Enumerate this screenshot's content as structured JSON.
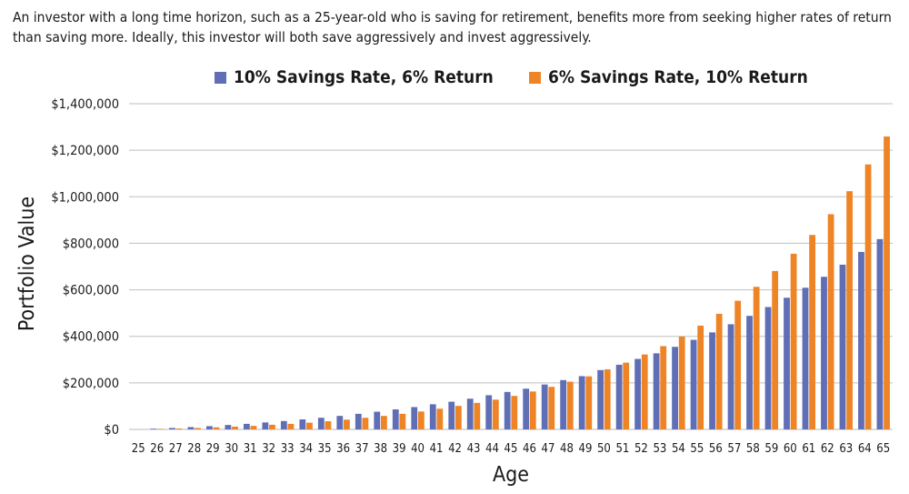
{
  "caption": "An investor with a long time horizon, such as a 25-year-old who is saving for retirement, benefits more from seeking higher rates of return than saving more. Ideally, this investor will both save aggressively and invest aggressively.",
  "colors": {
    "series1": "#5f6eb5",
    "series2": "#ee8426",
    "grid": "#bfbfbf",
    "axis": "#d0d0d0"
  },
  "chart_data": {
    "type": "bar",
    "xlabel": "Age",
    "ylabel": "Portfolio Value",
    "ylim": [
      0,
      1400000
    ],
    "yticks": [
      0,
      200000,
      400000,
      600000,
      800000,
      1000000,
      1200000,
      1400000
    ],
    "ytick_labels": [
      "$0",
      "$200,000",
      "$400,000",
      "$600,000",
      "$800,000",
      "$1,000,000",
      "$1,200,000",
      "$1,400,000"
    ],
    "grid": true,
    "legend_position": "top",
    "categories": [
      "25",
      "26",
      "27",
      "28",
      "29",
      "30",
      "31",
      "32",
      "33",
      "34",
      "35",
      "36",
      "37",
      "38",
      "39",
      "40",
      "41",
      "42",
      "43",
      "44",
      "45",
      "46",
      "47",
      "48",
      "49",
      "50",
      "51",
      "52",
      "53",
      "54",
      "55",
      "56",
      "57",
      "58",
      "59",
      "60",
      "61",
      "62",
      "63",
      "64",
      "65"
    ],
    "series": [
      {
        "name": "10% Savings Rate, 6% Return",
        "values": [
          0,
          3000,
          6200,
          10000,
          14000,
          19000,
          24000,
          30000,
          36000,
          43000,
          50000,
          58000,
          67000,
          76000,
          86000,
          96000,
          108000,
          119000,
          132000,
          147000,
          161000,
          175000,
          193000,
          212000,
          229000,
          255000,
          278000,
          303000,
          327000,
          355000,
          385000,
          417000,
          452000,
          488000,
          526000,
          566000,
          609000,
          656000,
          708000,
          763000,
          818000
        ]
      },
      {
        "name": "6% Savings Rate, 10% Return",
        "values": [
          0,
          1800,
          3800,
          6000,
          9000,
          12000,
          15000,
          20000,
          24000,
          29000,
          35000,
          42000,
          50000,
          58000,
          67000,
          77000,
          89000,
          101000,
          114000,
          128000,
          144000,
          163000,
          183000,
          205000,
          228000,
          258000,
          287000,
          322000,
          358000,
          399000,
          446000,
          497000,
          553000,
          613000,
          681000,
          755000,
          836000,
          925000,
          1024000,
          1139000,
          1259000
        ]
      }
    ]
  }
}
